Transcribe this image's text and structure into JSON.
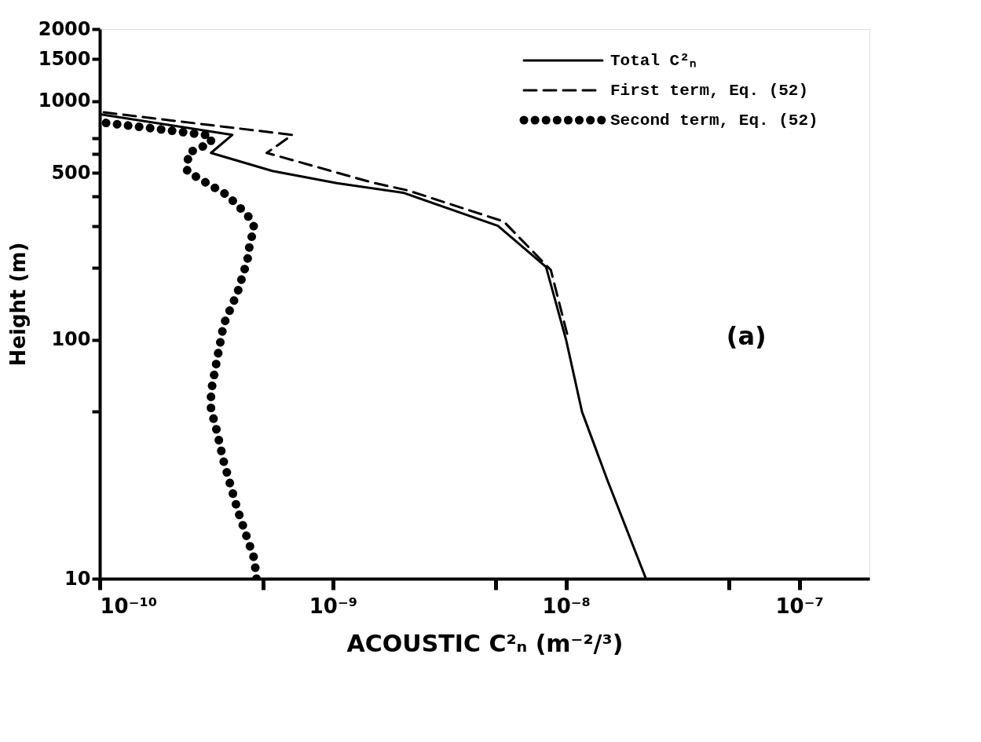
{
  "chart_data": {
    "type": "line",
    "xlabel": "ACOUSTIC C²ₙ (m⁻²/³)",
    "ylabel": "Height (m)",
    "annotations": [
      "(a)"
    ],
    "log": "xy",
    "xlim": [
      1e-10,
      2e-07
    ],
    "xticks": [
      {
        "value": 1e-10,
        "label": "10⁻¹⁰"
      },
      {
        "value": 5e-10,
        "label": null
      },
      {
        "value": 1e-09,
        "label": "10⁻⁹"
      },
      {
        "value": 5e-09,
        "label": null
      },
      {
        "value": 1e-08,
        "label": "10⁻⁸"
      },
      {
        "value": 5e-08,
        "label": null
      },
      {
        "value": 1e-07,
        "label": "10⁻⁷"
      }
    ],
    "ylim": [
      10,
      2000
    ],
    "yticks": [
      10,
      {
        "value": 50,
        "label": null
      },
      100,
      {
        "value": 200,
        "label": null
      },
      {
        "value": 300,
        "label": null
      },
      {
        "value": 400,
        "label": null
      },
      500,
      {
        "value": 600,
        "label": null
      },
      {
        "value": 700,
        "label": null
      },
      1000,
      1500,
      2000
    ],
    "grid": false,
    "legend": "top right",
    "series": [
      {
        "name": "Total C²ₙ",
        "color": "#000000",
        "line_style": "solid",
        "x": [
          2.2e-08,
          1.5e-08,
          1.17e-08,
          1e-08,
          8.2e-09,
          5.1e-09,
          2e-09,
          1.04e-09,
          5.5e-10,
          3e-10,
          3.7e-10,
          1e-10
        ],
        "values": [
          10,
          26,
          50,
          100,
          202,
          300,
          413,
          453,
          509,
          606,
          721,
          880
        ]
      },
      {
        "name": "First term, Eq. (52)",
        "color": "#000000",
        "line_style": "dashed",
        "x": [
          1.01e-08,
          8.6e-09,
          5.4e-09,
          2.1e-09,
          1.47e-09,
          5.2e-10,
          6.7e-10,
          1e-10
        ],
        "values": [
          106,
          196,
          313,
          422,
          456,
          606,
          721,
          900
        ]
      },
      {
        "name": "Second term, Eq. (52)",
        "color": "#000000",
        "line_style": "dotted",
        "x": [
          4.7e-10,
          4.6e-10,
          3.9e-10,
          3.4e-10,
          3.15e-10,
          3e-10,
          3e-10,
          3.2e-10,
          3.4e-10,
          3.9e-10,
          4.3e-10,
          4.4e-10,
          4.6e-10,
          4.3e-10,
          3.5e-10,
          2.65e-10,
          2.37e-10,
          2.4e-10,
          3e-10,
          3e-10,
          1.7e-10,
          1.03e-10
        ],
        "values": [
          10,
          12.1,
          19.4,
          31,
          43,
          51,
          60.5,
          85,
          116,
          158,
          216,
          252,
          296,
          333,
          405,
          475,
          509,
          606,
          668,
          716,
          767,
          812
        ]
      }
    ]
  }
}
